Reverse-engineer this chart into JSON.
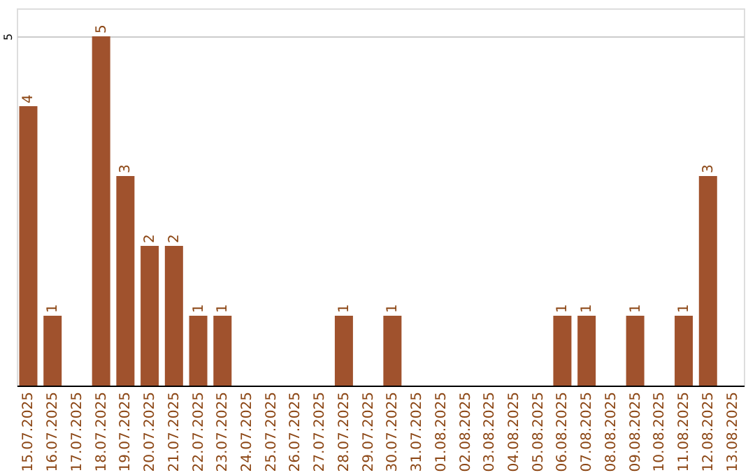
{
  "chart_data": {
    "type": "bar",
    "categories": [
      "15.07.2025",
      "16.07.2025",
      "17.07.2025",
      "18.07.2025",
      "19.07.2025",
      "20.07.2025",
      "21.07.2025",
      "22.07.2025",
      "23.07.2025",
      "24.07.2025",
      "25.07.2025",
      "26.07.2025",
      "27.07.2025",
      "28.07.2025",
      "29.07.2025",
      "30.07.2025",
      "31.07.2025",
      "01.08.2025",
      "02.08.2025",
      "03.08.2025",
      "04.08.2025",
      "05.08.2025",
      "06.08.2025",
      "07.08.2025",
      "08.08.2025",
      "09.08.2025",
      "10.08.2025",
      "11.08.2025",
      "12.08.2025",
      "13.08.2025"
    ],
    "values": [
      4,
      1,
      0,
      5,
      3,
      2,
      2,
      1,
      1,
      0,
      0,
      0,
      0,
      1,
      0,
      1,
      0,
      0,
      0,
      0,
      0,
      0,
      1,
      1,
      0,
      1,
      0,
      1,
      3,
      0
    ],
    "value_labels": [
      "4",
      "1",
      null,
      "5",
      "3",
      "2",
      "2",
      "1",
      "1",
      null,
      null,
      null,
      null,
      "1",
      null,
      "1",
      null,
      null,
      null,
      null,
      null,
      null,
      "1",
      "1",
      null,
      "1",
      null,
      "1",
      "3",
      null
    ],
    "color": "#a0522d",
    "ylim": [
      0,
      5.4
    ],
    "yticks": [
      5
    ],
    "grid": "y"
  }
}
